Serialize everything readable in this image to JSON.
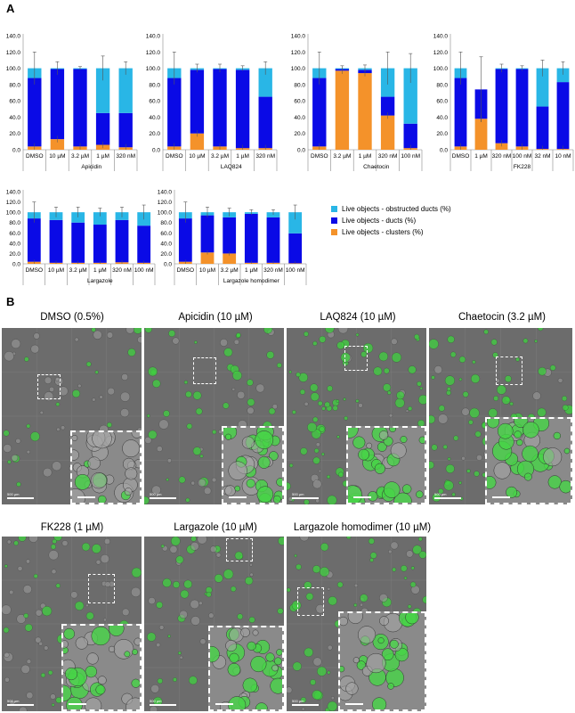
{
  "panel_labels": {
    "a": "A",
    "b": "B"
  },
  "colors": {
    "obstructed": "#29b6e6",
    "ducts": "#0a0ae6",
    "clusters": "#f4922a"
  },
  "legend": [
    {
      "label": "Live objects - obstructed ducts (%)",
      "color": "#29b6e6"
    },
    {
      "label": "Live objects - ducts (%)",
      "color": "#0a0ae6"
    },
    {
      "label": "Live objects - clusters (%)",
      "color": "#f4922a"
    }
  ],
  "chart_data": [
    {
      "type": "bar",
      "stacked": true,
      "ylim": [
        0,
        140
      ],
      "yticks": [
        "0.0",
        "20.0",
        "40.0",
        "60.0",
        "80.0",
        "100.0",
        "120.0",
        "140.0"
      ],
      "categories": [
        "DMSO",
        "10 µM",
        "3.2 µM",
        "1 µM",
        "320 nM"
      ],
      "group_label": "Apicidin",
      "group_start": 1,
      "series": [
        {
          "name": "Live objects - clusters (%)",
          "values": [
            4,
            13,
            4,
            6,
            3
          ]
        },
        {
          "name": "Live objects - ducts (%)",
          "values": [
            84,
            86,
            95,
            39,
            42
          ]
        },
        {
          "name": "Live objects - obstructed ducts (%)",
          "values": [
            12,
            1,
            1,
            55,
            55
          ]
        }
      ],
      "errors": [
        20,
        8,
        2,
        15,
        8
      ]
    },
    {
      "type": "bar",
      "stacked": true,
      "ylim": [
        0,
        140
      ],
      "yticks": [
        "0.0",
        "20.0",
        "40.0",
        "60.0",
        "80.0",
        "100.0",
        "120.0",
        "140.0"
      ],
      "categories": [
        "DMSO",
        "10 µM",
        "3.2 µM",
        "1 µM",
        "320 nM"
      ],
      "group_label": "LAQ824",
      "group_start": 1,
      "series": [
        {
          "name": "Live objects - clusters (%)",
          "values": [
            4,
            20,
            4,
            2,
            2
          ]
        },
        {
          "name": "Live objects - ducts (%)",
          "values": [
            84,
            78,
            95,
            96,
            63
          ]
        },
        {
          "name": "Live objects - obstructed ducts (%)",
          "values": [
            12,
            2,
            1,
            2,
            35
          ]
        }
      ],
      "errors": [
        20,
        5,
        5,
        3,
        8
      ]
    },
    {
      "type": "bar",
      "stacked": true,
      "ylim": [
        0,
        140
      ],
      "yticks": [
        "0.0",
        "20.0",
        "40.0",
        "60.0",
        "80.0",
        "100.0",
        "120.0",
        "140.0"
      ],
      "categories": [
        "DMSO",
        "3.2 µM",
        "1 µM",
        "320 nM",
        "100 nM"
      ],
      "group_label": "Chaetocin",
      "group_start": 1,
      "series": [
        {
          "name": "Live objects - clusters (%)",
          "values": [
            4,
            97,
            94,
            42,
            2
          ]
        },
        {
          "name": "Live objects - ducts (%)",
          "values": [
            84,
            2,
            4,
            23,
            30
          ]
        },
        {
          "name": "Live objects - obstructed ducts (%)",
          "values": [
            12,
            1,
            2,
            35,
            68
          ]
        }
      ],
      "errors": [
        20,
        3,
        4,
        20,
        18
      ]
    },
    {
      "type": "bar",
      "stacked": true,
      "ylim": [
        0,
        140
      ],
      "yticks": [
        "0.0",
        "20.0",
        "40.0",
        "60.0",
        "80.0",
        "100.0",
        "120.0",
        "140.0"
      ],
      "categories": [
        "DMSO",
        "1 µM",
        "320 nM",
        "100 nM",
        "32 nM",
        "10 nM"
      ],
      "group_label": "FK228",
      "group_start": 1,
      "series": [
        {
          "name": "Live objects - clusters (%)",
          "values": [
            4,
            38,
            8,
            4,
            1,
            1
          ]
        },
        {
          "name": "Live objects - ducts (%)",
          "values": [
            84,
            36,
            91,
            95,
            52,
            82
          ]
        },
        {
          "name": "Live objects - obstructed ducts (%)",
          "values": [
            12,
            0,
            1,
            1,
            47,
            17
          ]
        }
      ],
      "errors": [
        20,
        40,
        5,
        3,
        10,
        8
      ]
    },
    {
      "type": "bar",
      "stacked": true,
      "ylim": [
        0,
        140
      ],
      "yticks": [
        "0.0",
        "20.0",
        "40.0",
        "60.0",
        "80.0",
        "100.0",
        "120.0",
        "140.0"
      ],
      "categories": [
        "DMSO",
        "10 µM",
        "3.2 µM",
        "1 µM",
        "320 nM",
        "100 nM"
      ],
      "group_label": "Largazole",
      "group_start": 1,
      "series": [
        {
          "name": "Live objects - clusters (%)",
          "values": [
            4,
            2,
            2,
            2,
            3,
            2
          ]
        },
        {
          "name": "Live objects - ducts (%)",
          "values": [
            84,
            83,
            78,
            74,
            82,
            72
          ]
        },
        {
          "name": "Live objects - obstructed ducts (%)",
          "values": [
            12,
            15,
            20,
            24,
            15,
            26
          ]
        }
      ],
      "errors": [
        20,
        10,
        10,
        8,
        10,
        14
      ]
    },
    {
      "type": "bar",
      "stacked": true,
      "ylim": [
        0,
        140
      ],
      "yticks": [
        "0.0",
        "20.0",
        "40.0",
        "60.0",
        "80.0",
        "100.0",
        "120.0",
        "140.0"
      ],
      "categories": [
        "DMSO",
        "10 µM",
        "3.2 µM",
        "1 µM",
        "320 nM",
        "100 nM"
      ],
      "group_label": "Largazole homodimer",
      "group_start": 1,
      "series": [
        {
          "name": "Live objects - clusters (%)",
          "values": [
            4,
            22,
            20,
            2,
            2,
            1
          ]
        },
        {
          "name": "Live objects - ducts (%)",
          "values": [
            84,
            72,
            70,
            95,
            88,
            58
          ]
        },
        {
          "name": "Live objects - obstructed ducts (%)",
          "values": [
            12,
            6,
            10,
            3,
            10,
            41
          ]
        }
      ],
      "errors": [
        20,
        10,
        8,
        5,
        5,
        14
      ]
    }
  ],
  "micrographs": [
    {
      "title": "DMSO (0.5%)",
      "density": 0.35,
      "green": 0.15,
      "scale": "500 µm"
    },
    {
      "title": "Apicidin (10 µM)",
      "density": 0.45,
      "green": 0.55,
      "scale": "500 µm"
    },
    {
      "title": "LAQ824 (10 µM)",
      "density": 0.6,
      "green": 0.8,
      "scale": "500 µm"
    },
    {
      "title": "Chaetocin (3.2 µM)",
      "density": 0.7,
      "green": 0.9,
      "scale": "500 µm"
    },
    {
      "title": "FK228 (1 µM)",
      "density": 0.45,
      "green": 0.5,
      "scale": "500 µm"
    },
    {
      "title": "Largazole (10 µM)",
      "density": 0.4,
      "green": 0.5,
      "scale": "500 µm"
    },
    {
      "title": "Largazole homodimer (10 µM)",
      "density": 0.55,
      "green": 0.7,
      "scale": "500 µm"
    }
  ]
}
